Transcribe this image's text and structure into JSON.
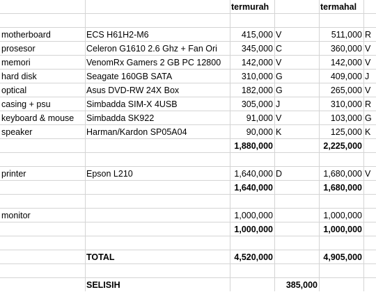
{
  "header": {
    "cheapest": "termurah",
    "priciest": "termahal"
  },
  "components": [
    {
      "part": "motherboard",
      "product": "ECS H61H2-M6",
      "low": "415,000",
      "low_code": "V",
      "high": "511,000",
      "high_code": "R"
    },
    {
      "part": "prosesor",
      "product": "Celeron G1610 2.6 Ghz + Fan Ori",
      "low": "345,000",
      "low_code": "C",
      "high": "360,000",
      "high_code": "V"
    },
    {
      "part": "memori",
      "product": "VenomRx Gamers 2 GB PC 12800",
      "low": "142,000",
      "low_code": "V",
      "high": "142,000",
      "high_code": "V"
    },
    {
      "part": "hard disk",
      "product": "Seagate 160GB SATA",
      "low": "310,000",
      "low_code": "G",
      "high": "409,000",
      "high_code": "J"
    },
    {
      "part": "optical",
      "product": "Asus DVD-RW 24X Box",
      "low": "182,000",
      "low_code": "G",
      "high": "265,000",
      "high_code": "V"
    },
    {
      "part": "casing + psu",
      "product": "Simbadda SIM-X 4USB",
      "low": "305,000",
      "low_code": "J",
      "high": "310,000",
      "high_code": "R"
    },
    {
      "part": "keyboard & mouse",
      "product": "Simbadda SK922",
      "low": "91,000",
      "low_code": "V",
      "high": "103,000",
      "high_code": "G"
    },
    {
      "part": "speaker",
      "product": "Harman/Kardon SP05A04",
      "low": "90,000",
      "low_code": "K",
      "high": "125,000",
      "high_code": "K"
    }
  ],
  "components_subtotal": {
    "low": "1,880,000",
    "high": "2,225,000"
  },
  "printer": {
    "part": "printer",
    "product": "Epson L210",
    "low": "1,640,000",
    "low_code": "D",
    "high": "1,680,000",
    "high_code": "V"
  },
  "printer_subtotal": {
    "low": "1,640,000",
    "high": "1,680,000"
  },
  "monitor": {
    "part": "monitor",
    "low": "1,000,000",
    "high": "1,000,000"
  },
  "monitor_subtotal": {
    "low": "1,000,000",
    "high": "1,000,000"
  },
  "total": {
    "label": "TOTAL",
    "low": "4,520,000",
    "high": "4,905,000"
  },
  "difference": {
    "label": "SELISIH",
    "value": "385,000"
  },
  "colors": {
    "gridline": "#d4d4d4"
  }
}
